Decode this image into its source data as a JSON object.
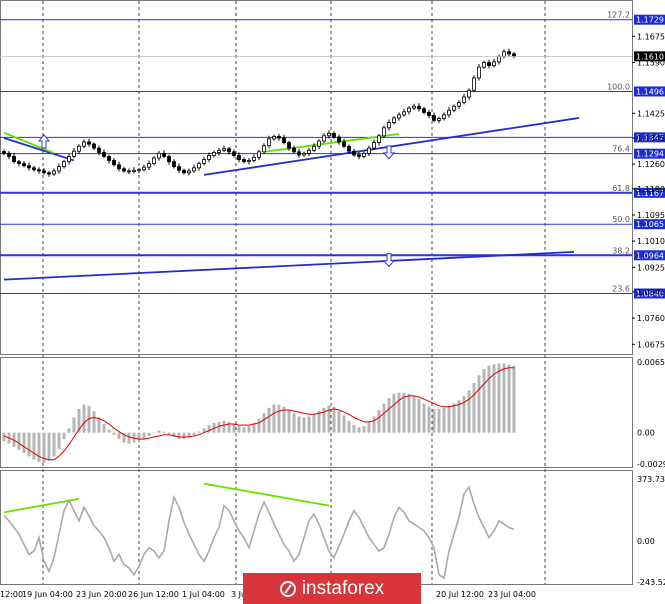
{
  "chart_data": [
    {
      "type": "candlestick",
      "title": "",
      "ylim": [
        1.065,
        1.178
      ],
      "y_ticks": [
        "1.1675",
        "1.1590",
        "1.1425",
        "1.1345",
        "1.1260",
        "1.1180",
        "1.1095",
        "1.1010",
        "1.0925",
        "1.0845",
        "1.0760",
        "1.0675"
      ],
      "current_price": "1.1610",
      "fib_levels": [
        {
          "label": "127.2",
          "value": 1.1729,
          "text": "1.1729"
        },
        {
          "label": "100.0",
          "value": 1.1496,
          "text": "1.1496"
        },
        {
          "label": "",
          "value": 1.1347,
          "text": "1.1347"
        },
        {
          "label": "76.4",
          "value": 1.1294,
          "text": "1.1294"
        },
        {
          "label": "61.8",
          "value": 1.1167,
          "text": "1.1167"
        },
        {
          "label": "50.0",
          "value": 1.1065,
          "text": "1.1065"
        },
        {
          "label": "38.2",
          "value": 1.0964,
          "text": "1.0964"
        },
        {
          "label": "23.6",
          "value": 1.084,
          "text": "1.0840"
        }
      ],
      "series": [
        {
          "values": [
            1.1295,
            1.1285,
            1.1268,
            1.1262,
            1.1255,
            1.1248,
            1.1242,
            1.1238,
            1.1232,
            1.1228,
            1.1238,
            1.1252,
            1.1268,
            1.1285,
            1.1302,
            1.1318,
            1.1332,
            1.1325,
            1.1312,
            1.1298,
            1.1285,
            1.1272,
            1.1258,
            1.1245,
            1.1238,
            1.1236,
            1.124,
            1.1242,
            1.125,
            1.1262,
            1.128,
            1.1295,
            1.1285,
            1.1268,
            1.1252,
            1.124,
            1.1232,
            1.1238,
            1.1248,
            1.1262,
            1.1275,
            1.1288,
            1.1298,
            1.1305,
            1.131,
            1.13,
            1.1288,
            1.1275,
            1.1268,
            1.1272,
            1.1282,
            1.13,
            1.132,
            1.1342,
            1.135,
            1.1345,
            1.133,
            1.1312,
            1.13,
            1.129,
            1.1295,
            1.1305,
            1.1318,
            1.1335,
            1.1352,
            1.136,
            1.1348,
            1.1332,
            1.1318,
            1.1302,
            1.129,
            1.1285,
            1.1295,
            1.1312,
            1.133,
            1.1352,
            1.1378,
            1.1395,
            1.141,
            1.142,
            1.143,
            1.1442,
            1.1448,
            1.144,
            1.1428,
            1.1418,
            1.1402,
            1.1408,
            1.142,
            1.1435,
            1.1448,
            1.146,
            1.1478,
            1.15,
            1.154,
            1.1575,
            1.159,
            1.158,
            1.1592,
            1.161,
            1.1625,
            1.1618,
            1.161
          ]
        }
      ],
      "trendlines": [
        {
          "from": [
            0,
            1.1345
          ],
          "to": [
            14,
            1.1272
          ],
          "color": "#1f2ecc"
        },
        {
          "from": [
            0,
            1.1362
          ],
          "to": [
            10,
            1.1296
          ],
          "color": "#66e000"
        },
        {
          "from": [
            52,
            1.13
          ],
          "to": [
            79,
            1.1358
          ],
          "color": "#66e000"
        },
        {
          "from": [
            40,
            1.1225
          ],
          "to": [
            103,
            1.141
          ],
          "color": "#1f2ecc"
        },
        {
          "from": [
            0,
            1.0885
          ],
          "to": [
            102,
            1.0975
          ],
          "color": "#1f2ecc"
        }
      ],
      "markers": [
        {
          "type": "arrow-up",
          "x": 8,
          "y": 1.1332
        },
        {
          "type": "arrow-down",
          "x": 77,
          "y": 1.13
        },
        {
          "type": "arrow-down",
          "x": 77,
          "y": 1.095
        }
      ]
    },
    {
      "type": "bar",
      "title": "",
      "ylim": [
        -0.0029,
        0.00654
      ],
      "y_ticks": [
        "0.00654",
        "0.00",
        "-0.0029"
      ],
      "series": [
        {
          "values": [
            -0.0008,
            -0.001,
            -0.0013,
            -0.0016,
            -0.0019,
            -0.0022,
            -0.0025,
            -0.0027,
            -0.0028,
            -0.0026,
            -0.0022,
            -0.0015,
            -0.0006,
            0.0004,
            0.0014,
            0.0022,
            0.0026,
            0.0025,
            0.002,
            0.0014,
            0.0008,
            0.0003,
            -0.0002,
            -0.0006,
            -0.0009,
            -0.001,
            -0.0009,
            -0.0008,
            -0.0006,
            -0.0003,
            0.0,
            0.0002,
            0.0001,
            -0.0002,
            -0.0004,
            -0.0006,
            -0.0006,
            -0.0004,
            -0.0002,
            0.0001,
            0.0004,
            0.0007,
            0.0009,
            0.001,
            0.0011,
            0.001,
            0.0008,
            0.0006,
            0.0005,
            0.0006,
            0.0009,
            0.0013,
            0.0018,
            0.0023,
            0.0026,
            0.0026,
            0.0024,
            0.0021,
            0.0018,
            0.0015,
            0.0014,
            0.0015,
            0.0017,
            0.002,
            0.0023,
            0.0025,
            0.0024,
            0.002,
            0.0016,
            0.0011,
            0.0007,
            0.0005,
            0.0006,
            0.001,
            0.0015,
            0.0021,
            0.0027,
            0.0032,
            0.0036,
            0.0037,
            0.0037,
            0.0036,
            0.0034,
            0.0031,
            0.0027,
            0.0024,
            0.0022,
            0.0022,
            0.0023,
            0.0025,
            0.0027,
            0.003,
            0.0034,
            0.0039,
            0.0046,
            0.0053,
            0.0059,
            0.0062,
            0.0063,
            0.0064,
            0.0064,
            0.0063,
            0.0062
          ]
        },
        {
          "values": [
            -0.0003,
            -0.0005,
            -0.0007,
            -0.001,
            -0.0013,
            -0.0016,
            -0.0019,
            -0.0022,
            -0.0024,
            -0.0025,
            -0.0025,
            -0.0022,
            -0.0017,
            -0.0011,
            -0.0004,
            0.0003,
            0.0009,
            0.0013,
            0.0014,
            0.0013,
            0.0011,
            0.0008,
            0.0004,
            0.0001,
            -0.0002,
            -0.0004,
            -0.0005,
            -0.0006,
            -0.0006,
            -0.0005,
            -0.0004,
            -0.0003,
            -0.0002,
            -0.0002,
            -0.0003,
            -0.0004,
            -0.0004,
            -0.0004,
            -0.0003,
            -0.0002,
            0.0,
            0.0002,
            0.0004,
            0.0006,
            0.0007,
            0.0008,
            0.0008,
            0.0007,
            0.0007,
            0.0007,
            0.0008,
            0.0009,
            0.0012,
            0.0015,
            0.0018,
            0.002,
            0.0021,
            0.0021,
            0.002,
            0.0019,
            0.0018,
            0.0017,
            0.0017,
            0.0018,
            0.0019,
            0.0021,
            0.0022,
            0.0021,
            0.0019,
            0.0017,
            0.0014,
            0.0012,
            0.001,
            0.001,
            0.0011,
            0.0014,
            0.0018,
            0.0022,
            0.0026,
            0.003,
            0.0033,
            0.0034,
            0.0034,
            0.0033,
            0.0031,
            0.0029,
            0.0027,
            0.0025,
            0.0024,
            0.0024,
            0.0025,
            0.0026,
            0.0028,
            0.0031,
            0.0035,
            0.004,
            0.0045,
            0.005,
            0.0054,
            0.0057,
            0.0059,
            0.006,
            0.006
          ]
        }
      ]
    },
    {
      "type": "line",
      "title": "",
      "ylim": [
        -243.5278,
        373.7321
      ],
      "y_ticks": [
        "373.7321",
        "0.00",
        "-243.5278"
      ],
      "x_ticks": [
        "12:00",
        "19 Jun 04:00",
        "23 Jun 20:00",
        "26 Jun 12:00",
        "1 Jul 04:00",
        "3 Jul",
        "20 Jul 12:00",
        "23 Jul 04:00"
      ],
      "series": [
        {
          "values": [
            150,
            120,
            80,
            40,
            -20,
            -80,
            -60,
            20,
            -120,
            -180,
            -100,
            40,
            180,
            240,
            180,
            120,
            200,
            150,
            90,
            60,
            20,
            -40,
            -120,
            -80,
            -140,
            -160,
            -200,
            -150,
            -80,
            -40,
            -60,
            -100,
            -60,
            120,
            260,
            200,
            110,
            40,
            -20,
            -80,
            -120,
            -60,
            20,
            80,
            210,
            180,
            120,
            60,
            20,
            -40,
            60,
            160,
            230,
            170,
            100,
            40,
            -20,
            -60,
            -120,
            -80,
            20,
            120,
            160,
            100,
            20,
            -60,
            -100,
            -30,
            40,
            120,
            180,
            140,
            80,
            20,
            -20,
            -60,
            -40,
            40,
            140,
            200,
            170,
            120,
            100,
            80,
            60,
            20,
            -40,
            -200,
            -220,
            -60,
            40,
            140,
            280,
            320,
            220,
            140,
            80,
            20,
            60,
            120,
            100,
            80,
            70
          ]
        }
      ],
      "trendlines": [
        {
          "from": [
            0,
            170
          ],
          "to": [
            15,
            250
          ],
          "color": "#66e000"
        },
        {
          "from": [
            40,
            340
          ],
          "to": [
            65,
            210
          ],
          "color": "#66e000"
        }
      ]
    }
  ]
}
